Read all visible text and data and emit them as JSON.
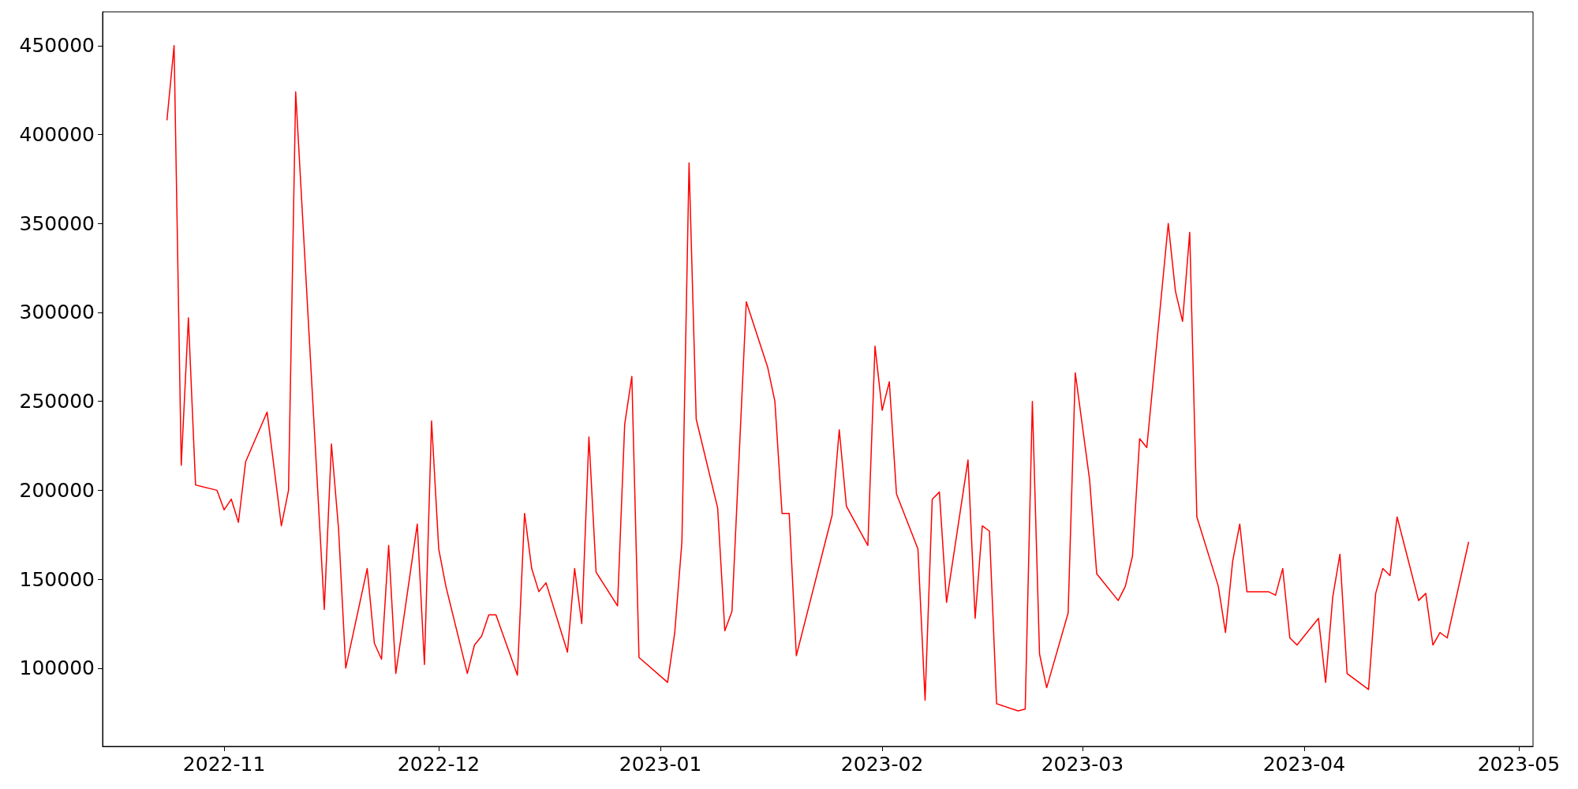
{
  "chart_data": {
    "type": "line",
    "x": [
      "2022-10-24",
      "2022-10-25",
      "2022-10-26",
      "2022-10-27",
      "2022-10-28",
      "2022-10-31",
      "2022-11-01",
      "2022-11-02",
      "2022-11-03",
      "2022-11-04",
      "2022-11-07",
      "2022-11-09",
      "2022-11-10",
      "2022-11-11",
      "2022-11-15",
      "2022-11-16",
      "2022-11-17",
      "2022-11-18",
      "2022-11-21",
      "2022-11-22",
      "2022-11-23",
      "2022-11-24",
      "2022-11-25",
      "2022-11-28",
      "2022-11-29",
      "2022-11-30",
      "2022-12-01",
      "2022-12-02",
      "2022-12-05",
      "2022-12-06",
      "2022-12-07",
      "2022-12-08",
      "2022-12-09",
      "2022-12-12",
      "2022-12-13",
      "2022-12-14",
      "2022-12-15",
      "2022-12-16",
      "2022-12-19",
      "2022-12-20",
      "2022-12-21",
      "2022-12-22",
      "2022-12-23",
      "2022-12-26",
      "2022-12-27",
      "2022-12-28",
      "2022-12-29",
      "2023-01-02",
      "2023-01-03",
      "2023-01-04",
      "2023-01-05",
      "2023-01-06",
      "2023-01-09",
      "2023-01-10",
      "2023-01-11",
      "2023-01-13",
      "2023-01-16",
      "2023-01-17",
      "2023-01-18",
      "2023-01-19",
      "2023-01-20",
      "2023-01-25",
      "2023-01-26",
      "2023-01-27",
      "2023-01-30",
      "2023-01-31",
      "2023-02-01",
      "2023-02-02",
      "2023-02-03",
      "2023-02-06",
      "2023-02-07",
      "2023-02-08",
      "2023-02-09",
      "2023-02-10",
      "2023-02-13",
      "2023-02-14",
      "2023-02-15",
      "2023-02-16",
      "2023-02-17",
      "2023-02-20",
      "2023-02-21",
      "2023-02-22",
      "2023-02-23",
      "2023-02-24",
      "2023-02-27",
      "2023-02-28",
      "2023-03-02",
      "2023-03-03",
      "2023-03-06",
      "2023-03-07",
      "2023-03-08",
      "2023-03-09",
      "2023-03-10",
      "2023-03-13",
      "2023-03-14",
      "2023-03-15",
      "2023-03-16",
      "2023-03-17",
      "2023-03-20",
      "2023-03-21",
      "2023-03-22",
      "2023-03-23",
      "2023-03-24",
      "2023-03-27",
      "2023-03-28",
      "2023-03-29",
      "2023-03-30",
      "2023-03-31",
      "2023-04-03",
      "2023-04-04",
      "2023-04-05",
      "2023-04-06",
      "2023-04-07",
      "2023-04-10",
      "2023-04-11",
      "2023-04-12",
      "2023-04-13",
      "2023-04-14",
      "2023-04-17",
      "2023-04-18",
      "2023-04-19",
      "2023-04-20",
      "2023-04-21",
      "2023-04-24"
    ],
    "series": [
      {
        "color": "#ff0000",
        "values": [
          408000,
          450000,
          214000,
          297000,
          203000,
          200000,
          189000,
          195000,
          182000,
          216000,
          244000,
          180000,
          200000,
          424000,
          133000,
          226000,
          178000,
          100000,
          156000,
          114000,
          105000,
          169000,
          97000,
          181000,
          102000,
          239000,
          167000,
          146000,
          97000,
          113000,
          118000,
          130000,
          130000,
          96000,
          187000,
          156000,
          143000,
          148000,
          109000,
          156000,
          125000,
          230000,
          154000,
          135000,
          237000,
          264000,
          106000,
          92000,
          120000,
          171000,
          384000,
          240000,
          190000,
          121000,
          132000,
          306000,
          269000,
          250000,
          187000,
          187000,
          107000,
          186000,
          234000,
          191000,
          169000,
          281000,
          245000,
          261000,
          198000,
          167000,
          82000,
          195000,
          199000,
          137000,
          217000,
          128000,
          180000,
          177000,
          80000,
          76000,
          77000,
          250000,
          108000,
          89000,
          131000,
          266000,
          206000,
          153000,
          138000,
          146000,
          163000,
          229000,
          224000,
          350000,
          312000,
          295000,
          345000,
          185000,
          146000,
          120000,
          160000,
          181000,
          143000,
          143000,
          141000,
          156000,
          117000,
          113000,
          128000,
          92000,
          140000,
          164000,
          97000,
          88000,
          142000,
          156000,
          152000,
          185000,
          138000,
          142000,
          113000,
          120000,
          117000,
          171000
        ]
      }
    ],
    "xlim": [
      "2022-10-15",
      "2023-05-03"
    ],
    "xticks": [
      {
        "value": "2022-11-01",
        "label": "2022-11"
      },
      {
        "value": "2022-12-01",
        "label": "2022-12"
      },
      {
        "value": "2023-01-01",
        "label": "2023-01"
      },
      {
        "value": "2023-02-01",
        "label": "2023-02"
      },
      {
        "value": "2023-03-01",
        "label": "2023-03"
      },
      {
        "value": "2023-04-01",
        "label": "2023-04"
      },
      {
        "value": "2023-05-01",
        "label": "2023-05"
      }
    ],
    "ylim": [
      56000,
      469000
    ],
    "yticks": [
      100000,
      150000,
      200000,
      250000,
      300000,
      350000,
      400000,
      450000
    ],
    "grid": false,
    "marker": "none",
    "line_style": "solid"
  }
}
